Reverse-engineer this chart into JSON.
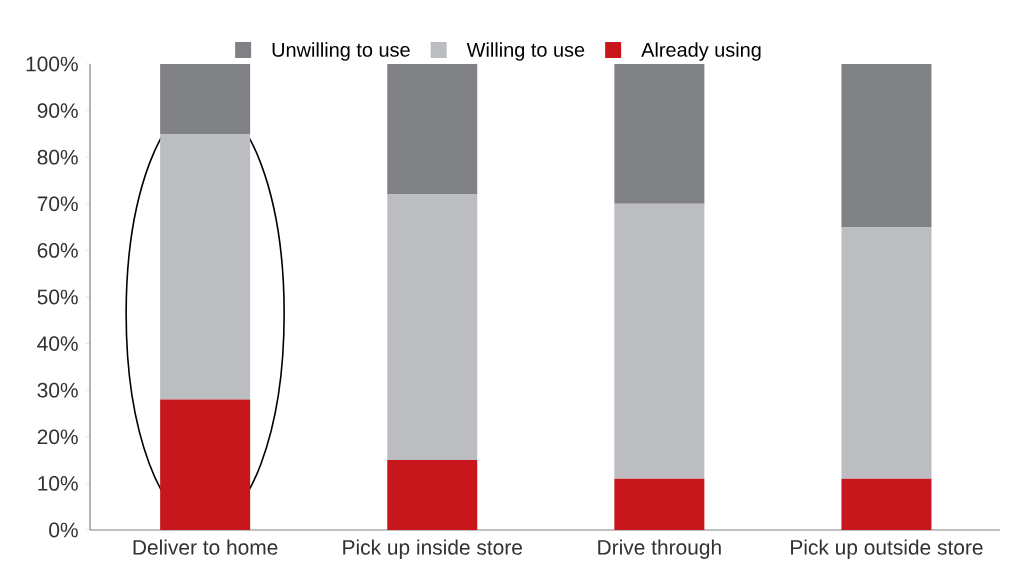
{
  "chart_data": {
    "type": "bar",
    "stacked": true,
    "categories": [
      "Deliver to home",
      "Pick up inside store",
      "Drive through",
      "Pick up outside store"
    ],
    "series": [
      {
        "name": "Already using",
        "color": "#c8161d",
        "values": [
          28,
          15,
          11,
          11
        ]
      },
      {
        "name": "Willing to use",
        "color": "#bcbdc1",
        "values": [
          57,
          57,
          59,
          54
        ]
      },
      {
        "name": "Unwilling to use",
        "color": "#808185",
        "values": [
          15,
          28,
          30,
          35
        ]
      }
    ],
    "ylim": [
      0,
      100
    ],
    "yticks": [
      {
        "value": 0,
        "label": "0%"
      },
      {
        "value": 10,
        "label": "10%"
      },
      {
        "value": 20,
        "label": "20%"
      },
      {
        "value": 30,
        "label": "30%"
      },
      {
        "value": 40,
        "label": "40%"
      },
      {
        "value": 50,
        "label": "50%"
      },
      {
        "value": 60,
        "label": "60%"
      },
      {
        "value": 70,
        "label": "70%"
      },
      {
        "value": 80,
        "label": "80%"
      },
      {
        "value": 90,
        "label": "90%"
      },
      {
        "value": 100,
        "label": "100%"
      }
    ],
    "grid": false,
    "legend": "top"
  }
}
